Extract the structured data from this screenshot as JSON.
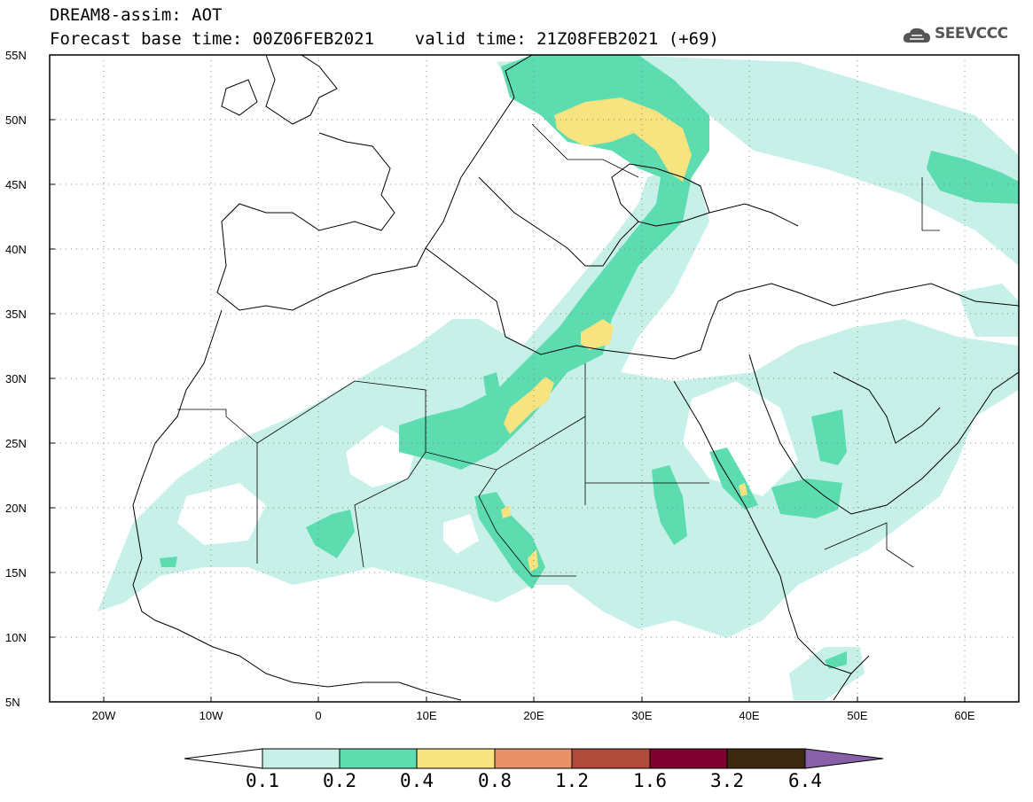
{
  "header": {
    "line1": "DREAM8-assim: AOT",
    "line2": "Forecast base time: 00Z06FEB2021    valid time: 21Z08FEB2021 (+69)",
    "logo_text": "SEEVCCC"
  },
  "map": {
    "lat_labels": [
      "55N",
      "50N",
      "45N",
      "40N",
      "35N",
      "30N",
      "25N",
      "20N",
      "15N",
      "10N",
      "5N"
    ],
    "lon_labels": [
      "20W",
      "10W",
      "0",
      "10E",
      "20E",
      "30E",
      "40E",
      "50E",
      "60E"
    ],
    "extent": {
      "lon_min": -25,
      "lon_max": 65,
      "lat_min": 5,
      "lat_max": 55
    },
    "gridlines": "dotted"
  },
  "colorbar": {
    "labels": [
      "0.1",
      "0.2",
      "0.4",
      "0.8",
      "1.2",
      "1.6",
      "3.2",
      "6.4"
    ],
    "colors": [
      "#ffffff",
      "#c7f0e8",
      "#5ddcb0",
      "#f7e380",
      "#e89068",
      "#b04a3a",
      "#800030",
      "#3a2810",
      "#8860a8"
    ]
  }
}
